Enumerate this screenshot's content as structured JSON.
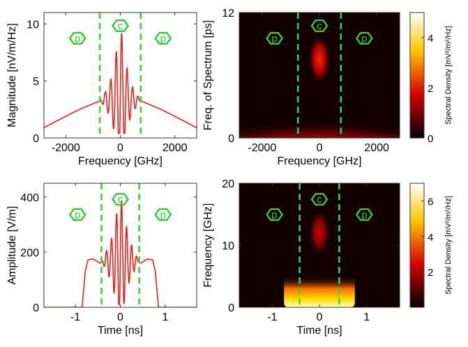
{
  "colors": {
    "signal": "#e8201a",
    "divider": "#3cd23c",
    "marker": "#33cc33"
  },
  "chart_data": [
    {
      "type": "line",
      "xlabel": "Frequency [GHz]",
      "ylabel": "Magnitude [nV/m/Hz]",
      "xlim": [
        -2800,
        2800
      ],
      "ylim": [
        0,
        11
      ],
      "xticks": [
        -2000,
        0,
        2000
      ],
      "yticks": [
        0,
        5,
        10
      ],
      "series": [
        {
          "x": [
            -2800,
            -2000,
            -1500,
            -1000,
            -800,
            -600,
            -400,
            -200,
            -100,
            0,
            100,
            200,
            400,
            600,
            800,
            1000,
            1500,
            2000,
            2800
          ],
          "y": [
            0.9,
            1.9,
            2.5,
            3.0,
            3.2,
            3.4,
            3.7,
            5.2,
            6.8,
            8.0,
            6.8,
            5.2,
            3.7,
            3.4,
            3.2,
            3.0,
            2.5,
            1.9,
            0.9
          ]
        }
      ],
      "dividers": [
        -750,
        750
      ],
      "region_labels": [
        "p",
        "c",
        "p"
      ],
      "grid": false
    },
    {
      "type": "heatmap",
      "xlabel": "Frequency [GHz]",
      "ylabel": "Freq. of Spectrum [ps]",
      "xlim": [
        -2800,
        2800
      ],
      "ylim": [
        0,
        12
      ],
      "xticks": [
        -2000,
        0,
        2000
      ],
      "yticks": [
        0,
        12
      ],
      "dividers": [
        -750,
        750
      ],
      "region_labels": [
        "p",
        "c",
        "p"
      ],
      "colorbar": {
        "label": "Spectral Density [mV²/m²/Hz]",
        "ticks": [
          0,
          2,
          4
        ],
        "max": 5
      }
    },
    {
      "type": "line",
      "xlabel": "Time [ns]",
      "ylabel": "Amplitude [V/m]",
      "xlim": [
        -1.7,
        1.7
      ],
      "ylim": [
        0,
        450
      ],
      "xticks": [
        -1,
        0,
        1
      ],
      "yticks": [
        0,
        200,
        400
      ],
      "series": [
        {
          "x": [
            -1.7,
            -0.85,
            -0.78,
            -0.72,
            -0.6,
            -0.45,
            -0.2,
            -0.1,
            0,
            0.1,
            0.2,
            0.45,
            0.6,
            0.72,
            0.78,
            0.85,
            1.7
          ],
          "y": [
            0,
            0,
            130,
            172,
            175,
            160,
            190,
            250,
            320,
            250,
            190,
            160,
            175,
            172,
            130,
            0,
            0
          ]
        }
      ],
      "dividers": [
        -0.42,
        0.42
      ],
      "region_labels": [
        "p",
        "c",
        "p"
      ],
      "grid": false
    },
    {
      "type": "heatmap",
      "xlabel": "Time [ns]",
      "ylabel": "Frequency [GHz]",
      "xlim": [
        -1.7,
        1.7
      ],
      "ylim": [
        0,
        20
      ],
      "xticks": [
        -1,
        0,
        1
      ],
      "yticks": [
        0,
        10,
        20
      ],
      "dividers": [
        -0.42,
        0.42
      ],
      "region_labels": [
        "p",
        "c",
        "p"
      ],
      "colorbar": {
        "label": "Spectral Density [mV²/m²/Hz]",
        "ticks": [
          2,
          4,
          6
        ],
        "max": 7
      }
    }
  ]
}
